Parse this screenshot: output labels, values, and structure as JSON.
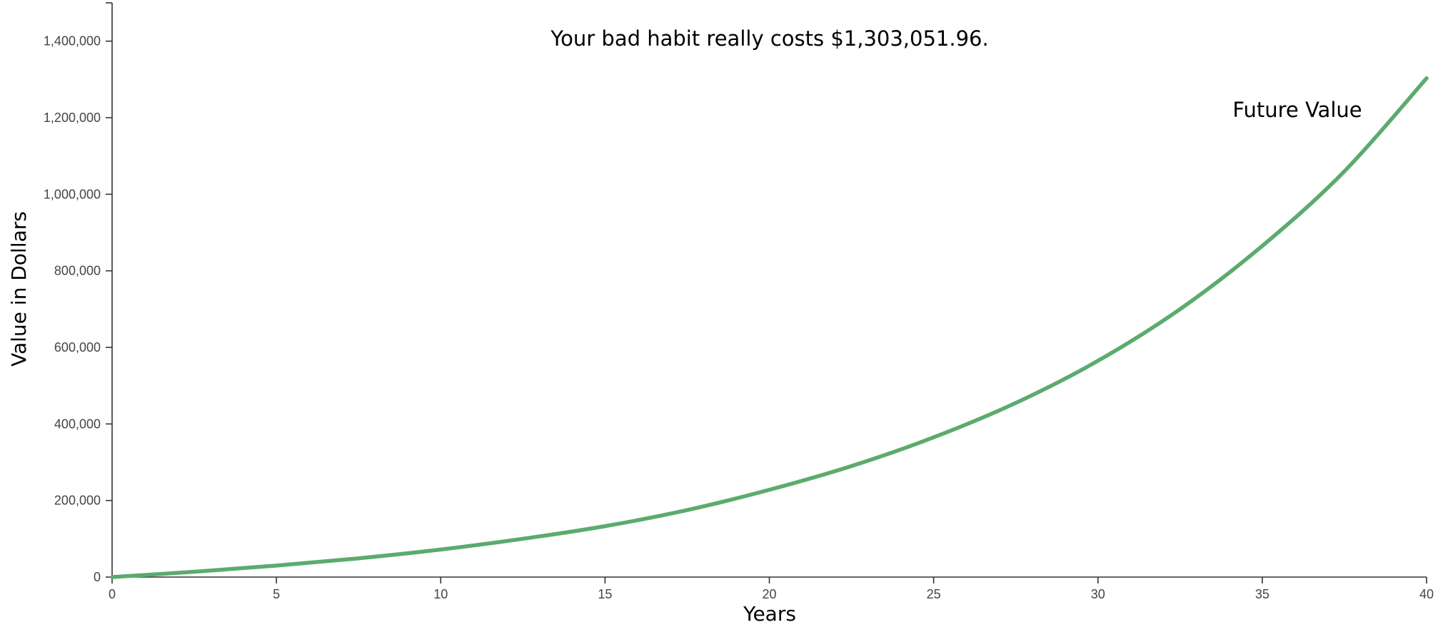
{
  "chart_data": {
    "type": "line",
    "title": "Your bad habit really costs $1,303,051.96.",
    "xlabel": "Years",
    "ylabel": "Value in Dollars",
    "xlim": [
      0,
      40
    ],
    "ylim": [
      0,
      1500000
    ],
    "x_ticks": [
      0,
      5,
      10,
      15,
      20,
      25,
      30,
      35,
      40
    ],
    "x_tick_labels": [
      "0",
      "5",
      "10",
      "15",
      "20",
      "25",
      "30",
      "35",
      "40"
    ],
    "y_ticks": [
      0,
      200000,
      400000,
      600000,
      800000,
      1000000,
      1200000,
      1400000
    ],
    "y_tick_labels": [
      "0",
      "200,000",
      "400,000",
      "600,000",
      "800,000",
      "1,000,000",
      "1,200,000",
      "1,400,000"
    ],
    "grid": false,
    "legend": "none",
    "series": [
      {
        "name": "Future Value",
        "color": "#5cab6e",
        "x": [
          0,
          2.5,
          5,
          7.5,
          10,
          12.5,
          15,
          17.5,
          20,
          22.5,
          25,
          27.5,
          30,
          32.5,
          35,
          37.5,
          40
        ],
        "values": [
          0,
          14000,
          30000,
          49000,
          72000,
          100000,
          133000,
          175000,
          228000,
          290000,
          365000,
          455000,
          565000,
          700000,
          865000,
          1060000,
          1303052
        ]
      }
    ]
  }
}
